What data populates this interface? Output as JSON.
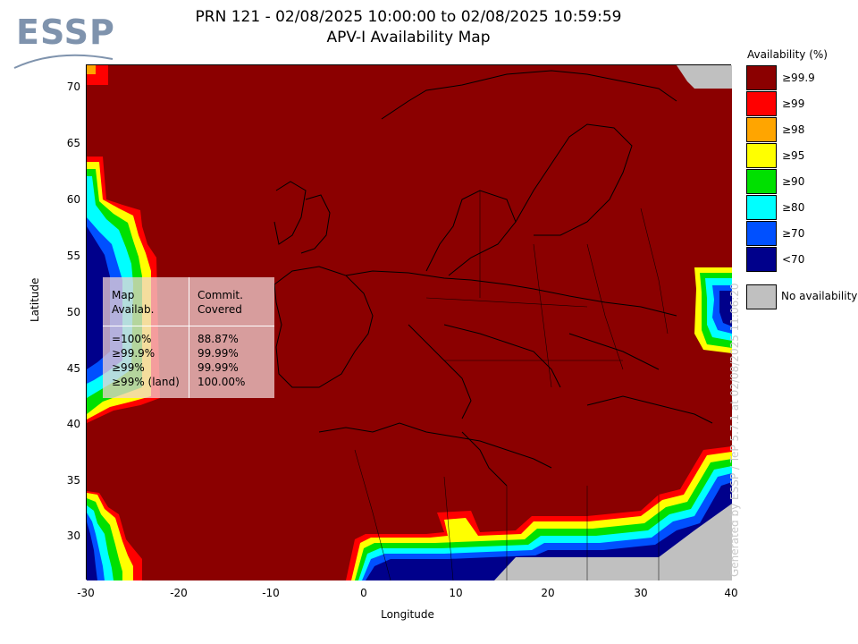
{
  "logo": {
    "text": "ESSP"
  },
  "title": {
    "line1": "PRN 121 - 02/08/2025 10:00:00 to 02/08/2025 10:59:59",
    "line2": "APV-I Availability Map"
  },
  "axes": {
    "xlabel": "Longitude",
    "ylabel": "Latitude",
    "xticks": [
      "-30",
      "-20",
      "-10",
      "0",
      "10",
      "20",
      "30",
      "40"
    ],
    "yticks": [
      "70",
      "65",
      "60",
      "55",
      "50",
      "45",
      "40",
      "35",
      "30"
    ]
  },
  "legend": {
    "title": "Availability (%)",
    "items": [
      {
        "label": "≥99.9",
        "color": "#8b0000"
      },
      {
        "label": "≥99",
        "color": "#ff0000"
      },
      {
        "label": "≥98",
        "color": "#ffa500"
      },
      {
        "label": "≥95",
        "color": "#ffff00"
      },
      {
        "label": "≥90",
        "color": "#00e000"
      },
      {
        "label": "≥80",
        "color": "#00ffff"
      },
      {
        "label": "≥70",
        "color": "#0050ff"
      },
      {
        "label": "<70",
        "color": "#00008b"
      }
    ],
    "no_availability": {
      "label": "No availability",
      "color": "#c0c0c0"
    }
  },
  "stats_table": {
    "header": {
      "col1_line1": "Map",
      "col1_line2": "Availab.",
      "col2_line1": "Commit.",
      "col2_line2": "Covered"
    },
    "rows": [
      {
        "availability": "=100%",
        "covered": "88.87%"
      },
      {
        "availability": "≥99.9%",
        "covered": "99.99%"
      },
      {
        "availability": "≥99%",
        "covered": "99.99%"
      },
      {
        "availability": "≥99% (land)",
        "covered": "100.00%"
      }
    ]
  },
  "watermark": "Generated by ESSP / TeP 5.7.1 at 02/08/2025 11:06:20"
}
